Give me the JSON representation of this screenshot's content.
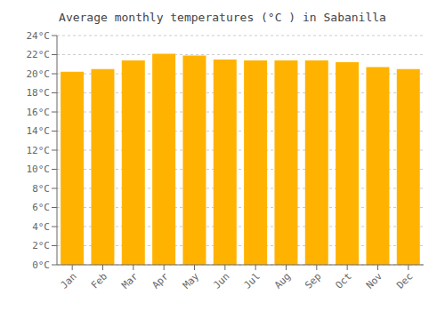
{
  "chart_data": {
    "type": "bar",
    "title": "Average monthly temperatures (°C ) in Sabanilla",
    "categories": [
      "Jan",
      "Feb",
      "Mar",
      "Apr",
      "May",
      "Jun",
      "Jul",
      "Aug",
      "Sep",
      "Oct",
      "Nov",
      "Dec"
    ],
    "values": [
      20.2,
      20.5,
      21.4,
      22.1,
      21.9,
      21.5,
      21.4,
      21.4,
      21.4,
      21.2,
      20.7,
      20.5
    ],
    "color": "#FFB300",
    "ylim": [
      0,
      24
    ],
    "yticks": [
      {
        "value": 0,
        "label": "0°C"
      },
      {
        "value": 2,
        "label": "2°C"
      },
      {
        "value": 4,
        "label": "4°C"
      },
      {
        "value": 6,
        "label": "6°C"
      },
      {
        "value": 8,
        "label": "8°C"
      },
      {
        "value": 10,
        "label": "10°C"
      },
      {
        "value": 12,
        "label": "12°C"
      },
      {
        "value": 14,
        "label": "14°C"
      },
      {
        "value": 16,
        "label": "16°C"
      },
      {
        "value": 18,
        "label": "18°C"
      },
      {
        "value": 20,
        "label": "20°C"
      },
      {
        "value": 22,
        "label": "22°C"
      },
      {
        "value": 24,
        "label": "24°C"
      }
    ],
    "grid": true
  }
}
